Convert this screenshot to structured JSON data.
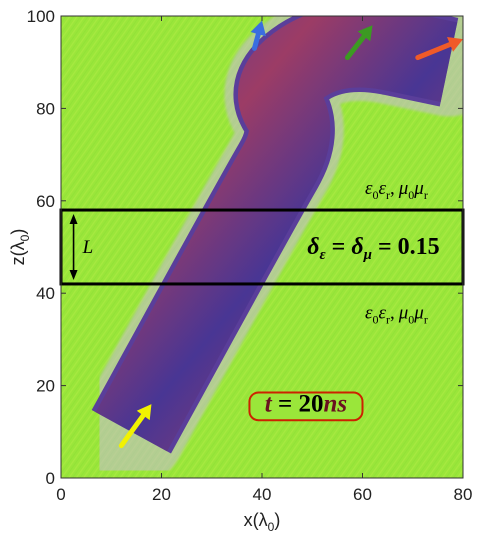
{
  "chart_data": {
    "type": "heatmap",
    "xlabel": {
      "main": "x(λ",
      "sub": "0",
      "close": ")"
    },
    "ylabel": {
      "main": "z(λ",
      "sub": "0",
      "close": ")"
    },
    "xlim": [
      0,
      80
    ],
    "ylim": [
      0,
      100
    ],
    "xticks": [
      0,
      20,
      40,
      60,
      80
    ],
    "yticks": [
      0,
      20,
      40,
      60,
      80,
      100
    ],
    "x_tick_labels": [
      "0",
      "20",
      "40",
      "60",
      "80"
    ],
    "y_tick_labels": [
      "0",
      "20",
      "40",
      "60",
      "80",
      "100"
    ],
    "background_color": "#9ae63a",
    "beam_color": "#5a3e9a",
    "beam_path": [
      [
        5,
        10
      ],
      [
        23,
        10
      ],
      [
        42,
        60
      ],
      [
        50,
        75
      ],
      [
        44,
        85
      ],
      [
        58,
        95
      ],
      [
        80,
        90
      ]
    ],
    "slab": {
      "z_min": 42,
      "z_max": 58,
      "x_min": 0,
      "x_max": 80
    },
    "arrows": [
      {
        "name": "incident",
        "color": "#f2f200",
        "from": [
          12,
          7
        ],
        "to": [
          18,
          16
        ]
      },
      {
        "name": "blue",
        "color": "#3a6ee0",
        "from": [
          38.5,
          93
        ],
        "to": [
          40,
          99
        ]
      },
      {
        "name": "green",
        "color": "#3c9a22",
        "from": [
          57,
          91
        ],
        "to": [
          62,
          98
        ]
      },
      {
        "name": "red",
        "color": "#f05a28",
        "from": [
          71,
          91
        ],
        "to": [
          80,
          95
        ]
      }
    ],
    "annotations": {
      "material_upper": {
        "eps0": "ε",
        "eps0_sub": "0",
        "epsr": "ε",
        "epsr_sub": "r",
        "comma": ",",
        "mu0": "μ",
        "mu0_sub": "0",
        "mur": "μ",
        "mur_sub": "r"
      },
      "material_lower": {
        "eps0": "ε",
        "eps0_sub": "0",
        "epsr": "ε",
        "epsr_sub": "r",
        "comma": ",",
        "mu0": "μ",
        "mu0_sub": "0",
        "mur": "μ",
        "mur_sub": "r"
      },
      "L_label": "L",
      "delta_eq": {
        "delta": "δ",
        "sub_eps": "ε",
        "eq1": " = ",
        "sub_mu": "μ",
        "eq2": " = 0.15"
      },
      "time": {
        "t": "t",
        "eq": " = 20",
        "unit": "ns",
        "border_color": "#cc2200",
        "text_color": "#6a1020"
      }
    }
  }
}
